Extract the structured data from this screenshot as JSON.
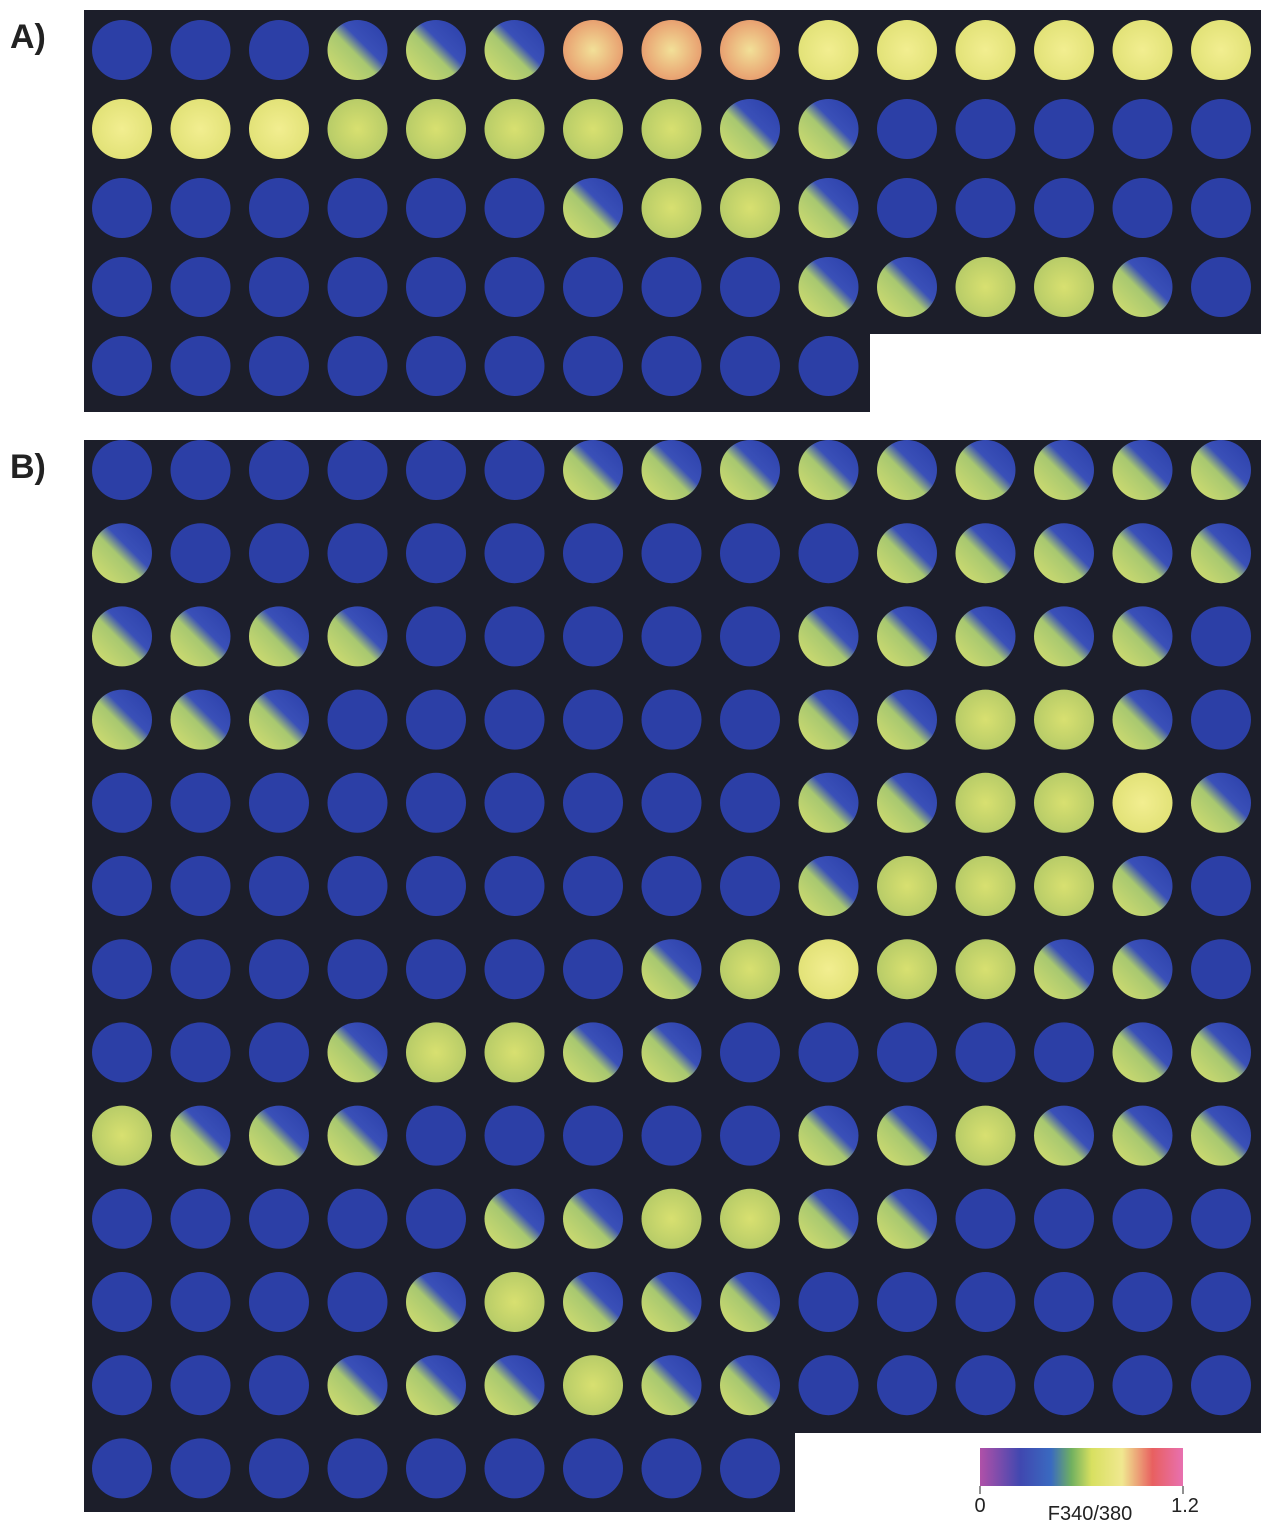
{
  "panels": [
    {
      "label": "A)"
    },
    {
      "label": "B)"
    }
  ],
  "colorbar": {
    "min": 0,
    "max": 1.2,
    "label": "F340/380"
  }
}
